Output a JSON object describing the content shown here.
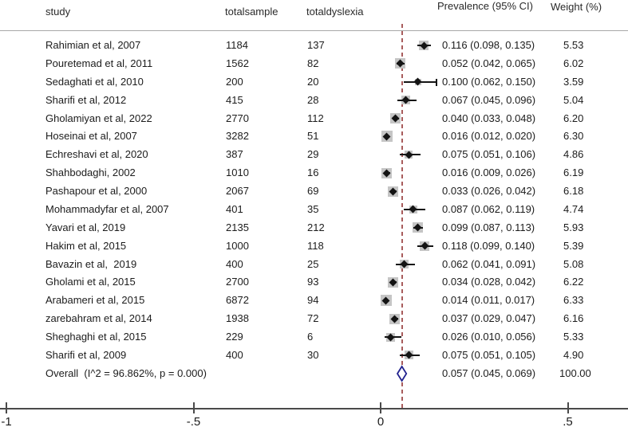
{
  "header": {
    "col_study": "study",
    "col_totalsample": "totalsample",
    "col_totaldyslexia": "totaldyslexia",
    "col_prevalence": "Prevalence (95% CI)",
    "col_weight": "Weight (%)"
  },
  "colors": {
    "dashed_line": "#a85c5c",
    "square": "#c5c5c5",
    "marker": "#141414",
    "diamond_stroke": "#23238f",
    "diamond_fill": "#ffffff",
    "axis": "#4a4a4a",
    "rule": "#a8a8a8",
    "text": "#1c1c1c"
  },
  "chart_data": {
    "type": "forest",
    "title": "",
    "xlabel": "",
    "legend": "none",
    "grid": false,
    "x_axis": {
      "ticks": [
        {
          "value": -1,
          "label": "-1"
        },
        {
          "value": -0.5,
          "label": "-.5"
        },
        {
          "value": 0,
          "label": "0"
        },
        {
          "value": 0.5,
          "label": ".5"
        }
      ],
      "xlim": [
        -1.02,
        0.66
      ]
    },
    "overall_ref_line": 0.057,
    "studies": [
      {
        "study": "Rahimian et al, 2007",
        "totalsample": "1184",
        "totaldyslexia": "137",
        "est": 0.116,
        "lo": 0.098,
        "hi": 0.135,
        "ci_label": "0.116 (0.098, 0.135)",
        "weight": "5.53"
      },
      {
        "study": "Pouretemad et al, 2011",
        "totalsample": "1562",
        "totaldyslexia": "82",
        "est": 0.052,
        "lo": 0.042,
        "hi": 0.065,
        "ci_label": "0.052 (0.042, 0.065)",
        "weight": "6.02"
      },
      {
        "study": "Sedaghati et al, 2010",
        "totalsample": "200",
        "totaldyslexia": "20",
        "est": 0.1,
        "lo": 0.062,
        "hi": 0.15,
        "ci_label": "0.100 (0.062, 0.150)",
        "weight": "3.59",
        "cap_right": true
      },
      {
        "study": "Sharifi et al, 2012",
        "totalsample": "415",
        "totaldyslexia": "28",
        "est": 0.067,
        "lo": 0.045,
        "hi": 0.096,
        "ci_label": "0.067 (0.045, 0.096)",
        "weight": "5.04"
      },
      {
        "study": "Gholamiyan et al, 2022",
        "totalsample": "2770",
        "totaldyslexia": "112",
        "est": 0.04,
        "lo": 0.033,
        "hi": 0.048,
        "ci_label": "0.040 (0.033, 0.048)",
        "weight": "6.20"
      },
      {
        "study": "Hoseinai et al, 2007",
        "totalsample": "3282",
        "totaldyslexia": "51",
        "est": 0.016,
        "lo": 0.012,
        "hi": 0.02,
        "ci_label": "0.016 (0.012, 0.020)",
        "weight": "6.30"
      },
      {
        "study": "Echreshavi et al, 2020",
        "totalsample": "387",
        "totaldyslexia": "29",
        "est": 0.075,
        "lo": 0.051,
        "hi": 0.106,
        "ci_label": "0.075 (0.051, 0.106)",
        "weight": "4.86"
      },
      {
        "study": "Shahbodaghi, 2002",
        "totalsample": "1010",
        "totaldyslexia": "16",
        "est": 0.016,
        "lo": 0.009,
        "hi": 0.026,
        "ci_label": "0.016 (0.009, 0.026)",
        "weight": "6.19"
      },
      {
        "study": "Pashapour et al, 2000",
        "totalsample": "2067",
        "totaldyslexia": "69",
        "est": 0.033,
        "lo": 0.026,
        "hi": 0.042,
        "ci_label": "0.033 (0.026, 0.042)",
        "weight": "6.18"
      },
      {
        "study": "Mohammadyfar et al, 2007",
        "totalsample": "401",
        "totaldyslexia": "35",
        "est": 0.087,
        "lo": 0.062,
        "hi": 0.119,
        "ci_label": "0.087 (0.062, 0.119)",
        "weight": "4.74"
      },
      {
        "study": "Yavari et al, 2019",
        "totalsample": "2135",
        "totaldyslexia": "212",
        "est": 0.099,
        "lo": 0.087,
        "hi": 0.113,
        "ci_label": "0.099 (0.087, 0.113)",
        "weight": "5.93"
      },
      {
        "study": "Hakim et al, 2015",
        "totalsample": "1000",
        "totaldyslexia": "118",
        "est": 0.118,
        "lo": 0.099,
        "hi": 0.14,
        "ci_label": "0.118 (0.099, 0.140)",
        "weight": "5.39"
      },
      {
        "study": "Bavazin et al,  2019",
        "totalsample": "400",
        "totaldyslexia": "25",
        "est": 0.062,
        "lo": 0.041,
        "hi": 0.091,
        "ci_label": "0.062 (0.041, 0.091)",
        "weight": "5.08"
      },
      {
        "study": "Gholami et al, 2015",
        "totalsample": "2700",
        "totaldyslexia": "93",
        "est": 0.034,
        "lo": 0.028,
        "hi": 0.042,
        "ci_label": "0.034 (0.028, 0.042)",
        "weight": "6.22"
      },
      {
        "study": "Arabameri et al, 2015",
        "totalsample": "6872",
        "totaldyslexia": "94",
        "est": 0.014,
        "lo": 0.011,
        "hi": 0.017,
        "ci_label": "0.014 (0.011, 0.017)",
        "weight": "6.33"
      },
      {
        "study": "zarebahram et al, 2014",
        "totalsample": "1938",
        "totaldyslexia": "72",
        "est": 0.037,
        "lo": 0.029,
        "hi": 0.047,
        "ci_label": "0.037 (0.029, 0.047)",
        "weight": "6.16"
      },
      {
        "study": "Sheghaghi et al, 2015",
        "totalsample": "229",
        "totaldyslexia": "6",
        "est": 0.026,
        "lo": 0.01,
        "hi": 0.056,
        "ci_label": "0.026 (0.010, 0.056)",
        "weight": "5.33"
      },
      {
        "study": "Sharifi et al, 2009",
        "totalsample": "400",
        "totaldyslexia": "30",
        "est": 0.075,
        "lo": 0.051,
        "hi": 0.105,
        "ci_label": "0.075 (0.051, 0.105)",
        "weight": "4.90"
      }
    ],
    "overall": {
      "label": "Overall  (I^2 = 96.862%, p = 0.000)",
      "est": 0.057,
      "lo": 0.045,
      "hi": 0.069,
      "ci_label": "0.057 (0.045, 0.069)",
      "weight": "100.00"
    }
  }
}
